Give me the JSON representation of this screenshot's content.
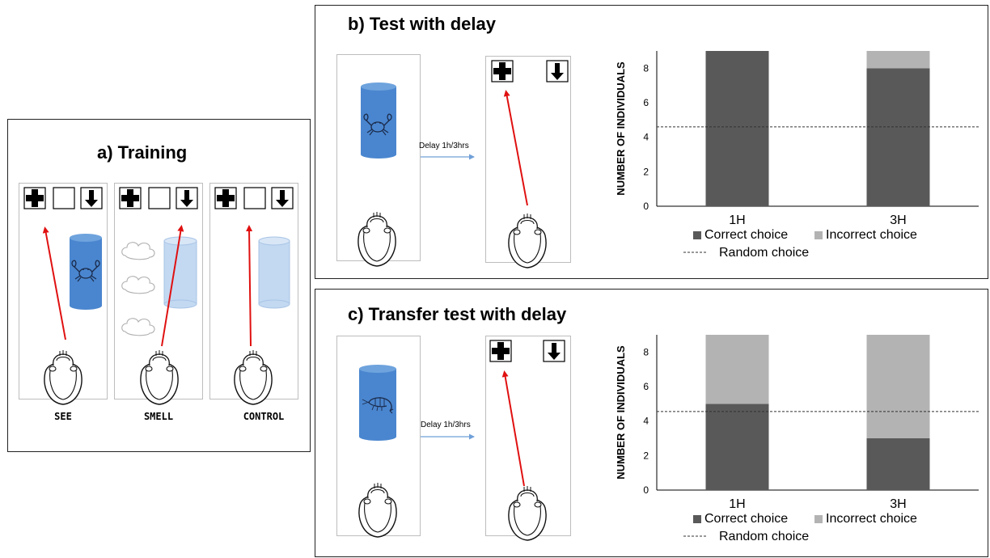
{
  "panel_a": {
    "title": "a) Training",
    "lanes": [
      {
        "label": "SEE"
      },
      {
        "label": "SMELL"
      },
      {
        "label": "CONTROL"
      }
    ]
  },
  "panel_b": {
    "title": "b) Test with delay",
    "delay_label": "Delay 1h/3hrs"
  },
  "panel_c": {
    "title": "c) Transfer test with delay",
    "delay_label": "Delay 1h/3hrs"
  },
  "chart_data": [
    {
      "type": "bar",
      "stacked": true,
      "categories": [
        "1H",
        "3H"
      ],
      "series": [
        {
          "name": "Correct choice",
          "values": [
            9,
            8
          ],
          "color": "#595959"
        },
        {
          "name": "Incorrect choice",
          "values": [
            0,
            1
          ],
          "color": "#b3b3b3"
        }
      ],
      "reference_line": {
        "name": "Random choice",
        "value": 4.6,
        "style": "dashed"
      },
      "ylabel": "NUMBER OF INDIVIDUALS",
      "yticks": [
        "0",
        "2",
        "4",
        "6",
        "8"
      ],
      "ylim": [
        0,
        9
      ],
      "legend": "bottom"
    },
    {
      "type": "bar",
      "stacked": true,
      "categories": [
        "1H",
        "3H"
      ],
      "series": [
        {
          "name": "Correct choice",
          "values": [
            5,
            3
          ],
          "color": "#595959"
        },
        {
          "name": "Incorrect choice",
          "values": [
            4,
            6
          ],
          "color": "#b3b3b3"
        }
      ],
      "reference_line": {
        "name": "Random choice",
        "value": 4.55,
        "style": "dashed"
      },
      "ylabel": "NUMBER OF INDIVIDUALS",
      "yticks": [
        "0",
        "2",
        "4",
        "6",
        "8"
      ],
      "ylim": [
        0,
        9
      ],
      "legend": "bottom"
    }
  ]
}
